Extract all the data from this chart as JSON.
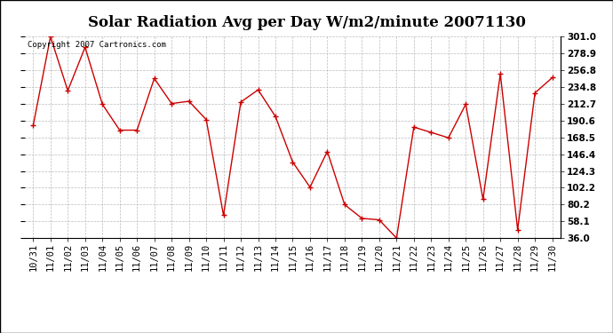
{
  "title": "Solar Radiation Avg per Day W/m2/minute 20071130",
  "copyright_text": "Copyright 2007 Cartronics.com",
  "x_labels": [
    "10/31",
    "11/01",
    "11/02",
    "11/03",
    "11/04",
    "11/05",
    "11/06",
    "11/07",
    "11/08",
    "11/09",
    "11/10",
    "11/11",
    "11/12",
    "11/13",
    "11/14",
    "11/15",
    "11/16",
    "11/17",
    "11/18",
    "11/19",
    "11/20",
    "11/21",
    "11/22",
    "11/23",
    "11/24",
    "11/25",
    "11/26",
    "11/27",
    "11/28",
    "11/29",
    "11/30"
  ],
  "y_values": [
    184,
    301,
    230,
    287,
    212,
    178,
    178,
    246,
    213,
    216,
    192,
    66,
    215,
    231,
    196,
    136,
    103,
    150,
    80,
    62,
    60,
    36,
    182,
    175,
    168,
    212,
    87,
    252,
    47,
    227,
    247
  ],
  "y_ticks": [
    36.0,
    58.1,
    80.2,
    102.2,
    124.3,
    146.4,
    168.5,
    190.6,
    212.7,
    234.8,
    256.8,
    278.9,
    301.0
  ],
  "y_tick_labels": [
    "36.0",
    "58.1",
    "80.2",
    "102.2",
    "124.3",
    "146.4",
    "168.5",
    "190.6",
    "212.7",
    "234.8",
    "256.8",
    "278.9",
    "301.0"
  ],
  "line_color": "#cc0000",
  "marker": "+",
  "bg_color": "#ffffff",
  "grid_color": "#bbbbbb",
  "title_fontsize": 12,
  "tick_fontsize": 7.5,
  "copyright_fontsize": 6.5
}
